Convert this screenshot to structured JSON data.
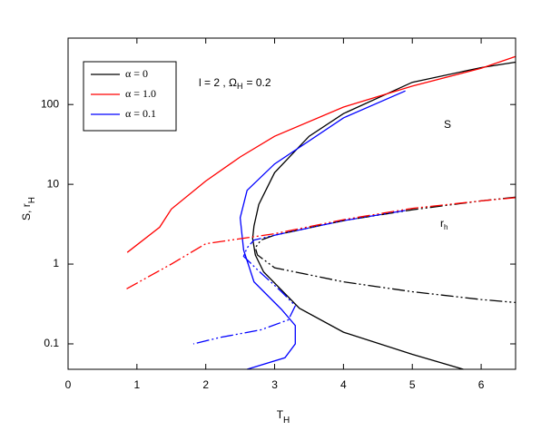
{
  "chart_data": {
    "type": "line",
    "xlabel": "T",
    "xlabel_sub": "H",
    "ylabel": "S, r",
    "ylabel_sub": "H",
    "annotation": "l = 2 ,  Ω",
    "annotation_sub": "H",
    "annotation_tail": "= 0.2",
    "label_s": "S",
    "label_r": "r",
    "label_r_sub": "h",
    "xlim": [
      0,
      6.5
    ],
    "xticks": [
      0,
      1,
      2,
      3,
      4,
      5,
      6
    ],
    "ylim": [
      0.048,
      680
    ],
    "yticks": [
      0.1,
      1,
      10,
      100
    ],
    "log_y": true,
    "legend_position": "upper-left",
    "series": [
      {
        "name": "α = 0",
        "color": "#000000",
        "dash": "solid",
        "x": [
          6.5,
          6,
          5,
          4,
          3.5,
          3,
          2.77,
          2.7,
          2.68,
          2.72,
          2.84,
          3.36,
          4,
          5,
          5.74
        ],
        "values": [
          340,
          290,
          190,
          77,
          40,
          14,
          5.6,
          3,
          2.1,
          1.3,
          0.8,
          0.28,
          0.14,
          0.074,
          0.048
        ]
      },
      {
        "name": "α = 1.0",
        "color": "#ff0000",
        "dash": "solid",
        "x": [
          0.86,
          1.33,
          1.5,
          2,
          2.5,
          3,
          4,
          5,
          6,
          6.5
        ],
        "values": [
          1.4,
          2.9,
          4.9,
          11,
          22,
          40,
          93,
          170,
          285,
          400
        ]
      },
      {
        "name": "α = 0.1",
        "color": "#0000ff",
        "dash": "solid",
        "x": [
          4.9,
          4,
          3,
          2.6,
          2.5,
          2.55,
          2.7,
          3.1,
          3.3,
          3.3,
          3.15,
          2.6
        ],
        "values": [
          148,
          68,
          18,
          8.4,
          3.8,
          1.5,
          0.6,
          0.27,
          0.17,
          0.1,
          0.067,
          0.048
        ]
      },
      {
        "color": "#000000",
        "dash": "dashdotdot",
        "x": [
          6.5,
          6,
          5,
          4,
          3,
          2.8,
          2.72,
          2.75,
          3,
          4,
          5,
          6,
          6.5
        ],
        "values": [
          6.9,
          6.2,
          4.8,
          3.5,
          2.3,
          2.0,
          1.6,
          1.3,
          0.9,
          0.6,
          0.45,
          0.36,
          0.33
        ]
      },
      {
        "color": "#ff0000",
        "dash": "dashdotdot",
        "x": [
          0.85,
          1.5,
          2,
          3,
          4,
          5,
          6,
          6.5
        ],
        "values": [
          0.49,
          1.0,
          1.8,
          2.4,
          3.6,
          5,
          6.2,
          6.8
        ]
      },
      {
        "color": "#0000ff",
        "dash": "dashdotdot",
        "x": [
          4.9,
          4,
          3,
          2.7,
          2.6,
          2.55,
          2.75,
          3.1,
          3.3,
          3.2,
          2.8,
          2.2,
          1.82
        ],
        "values": [
          4.7,
          3.5,
          2.3,
          2.0,
          1.6,
          1.25,
          0.85,
          0.45,
          0.3,
          0.2,
          0.15,
          0.12,
          0.1
        ]
      }
    ]
  }
}
